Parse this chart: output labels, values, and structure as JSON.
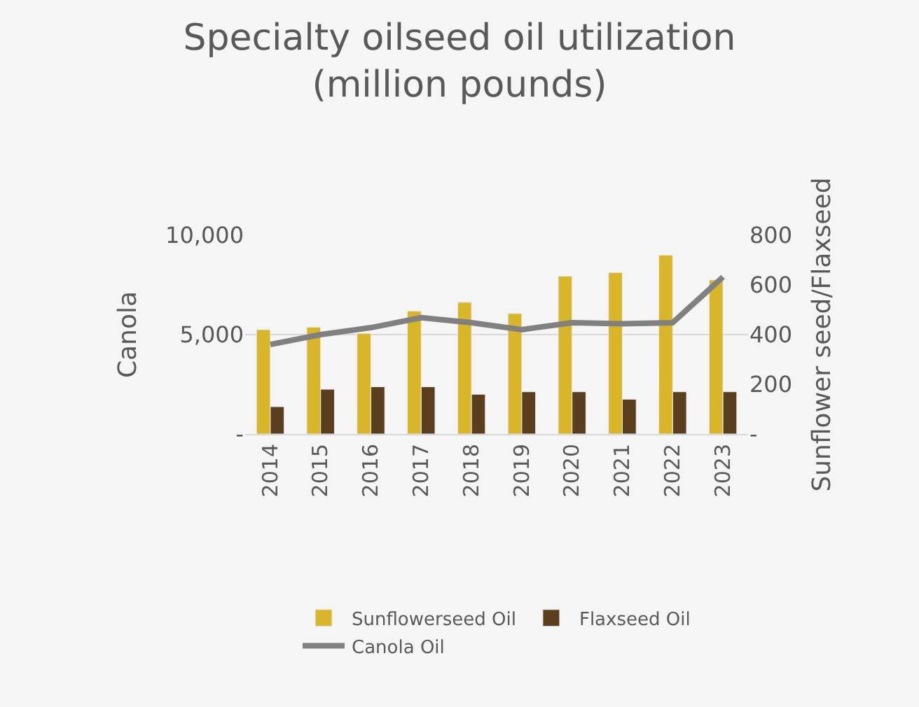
{
  "chart_data": {
    "type": "bar",
    "title": "Specialty oilseed oil utilization (million pounds)",
    "ylabel": "Canola",
    "y2label": "Sunflower seed/Flaxseed",
    "categories": [
      "2014",
      "2015",
      "2016",
      "2017",
      "2018",
      "2019",
      "2020",
      "2021",
      "2022",
      "2023"
    ],
    "series": [
      {
        "name": "Sunflowerseed Oil",
        "color": "#d9b52a",
        "axis": "y2",
        "values": [
          420,
          430,
          405,
          495,
          530,
          485,
          635,
          650,
          720,
          620
        ]
      },
      {
        "name": "Flaxseed Oil",
        "color": "#5a3f1e",
        "axis": "y2",
        "values": [
          110,
          180,
          190,
          190,
          160,
          170,
          170,
          140,
          170,
          170
        ]
      },
      {
        "name": "Canola Oil",
        "type": "line",
        "color": "#808080",
        "axis": "y",
        "marker": "none",
        "line_style": "solid",
        "values": [
          4500,
          5000,
          5350,
          5850,
          5600,
          5250,
          5600,
          5550,
          5600,
          7900
        ]
      }
    ],
    "ylim": [
      0,
      10000
    ],
    "yticks": [
      {
        "value": 0,
        "label": "-"
      },
      {
        "value": 5000,
        "label": "5,000"
      },
      {
        "value": 10000,
        "label": "10,000"
      }
    ],
    "y2lim": [
      0,
      800
    ],
    "y2ticks": [
      {
        "value": 0,
        "label": "-"
      },
      200,
      400,
      600,
      800
    ],
    "grid": "y",
    "legend": "bottom"
  }
}
